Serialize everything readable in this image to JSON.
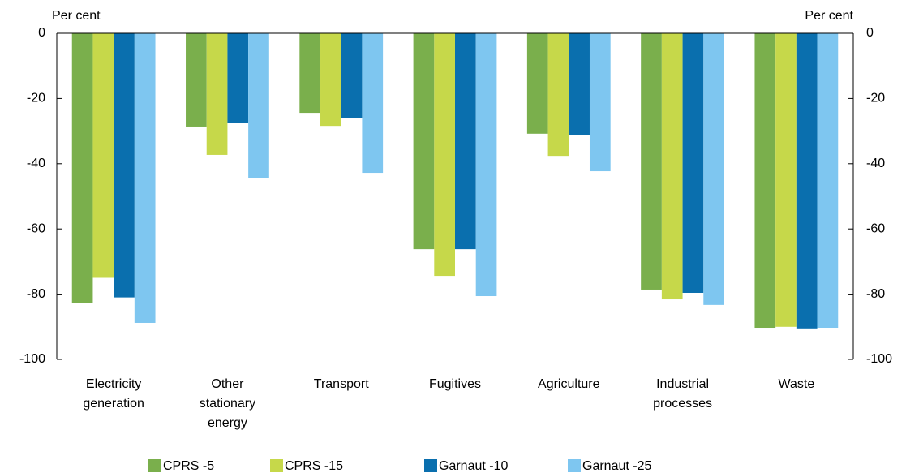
{
  "chart_data": {
    "type": "bar",
    "y_label": "Per cent",
    "y2_label": "Per cent",
    "categories": [
      "Electricity generation",
      "Other stationary energy",
      "Transport",
      "Fugitives",
      "Agriculture",
      "Industrial processes",
      "Waste"
    ],
    "series": [
      {
        "name": "CPRS -5",
        "color": "#7aaf4c",
        "values": [
          -82.8,
          -28.6,
          -24.4,
          -66.2,
          -30.8,
          -78.6,
          -90.3
        ]
      },
      {
        "name": "CPRS -15",
        "color": "#c6d84a",
        "values": [
          -75,
          -37.3,
          -28.4,
          -74.4,
          -37.6,
          -81.6,
          -90
        ]
      },
      {
        "name": "Garnaut -10",
        "color": "#0a6fae",
        "values": [
          -81,
          -27.6,
          -25.9,
          -66.2,
          -31.1,
          -79.6,
          -90.5
        ]
      },
      {
        "name": "Garnaut -25",
        "color": "#7ec6f0",
        "values": [
          -88.8,
          -44.3,
          -42.8,
          -80.6,
          -42.3,
          -83.3,
          -90.3
        ]
      }
    ],
    "ylim": [
      -100,
      0
    ],
    "yticks": [
      0,
      -20,
      -40,
      -60,
      -80,
      -100
    ],
    "y2lim": [
      -100,
      0
    ],
    "y2ticks": [
      0,
      -20,
      -40,
      -60,
      -80,
      -100
    ]
  }
}
